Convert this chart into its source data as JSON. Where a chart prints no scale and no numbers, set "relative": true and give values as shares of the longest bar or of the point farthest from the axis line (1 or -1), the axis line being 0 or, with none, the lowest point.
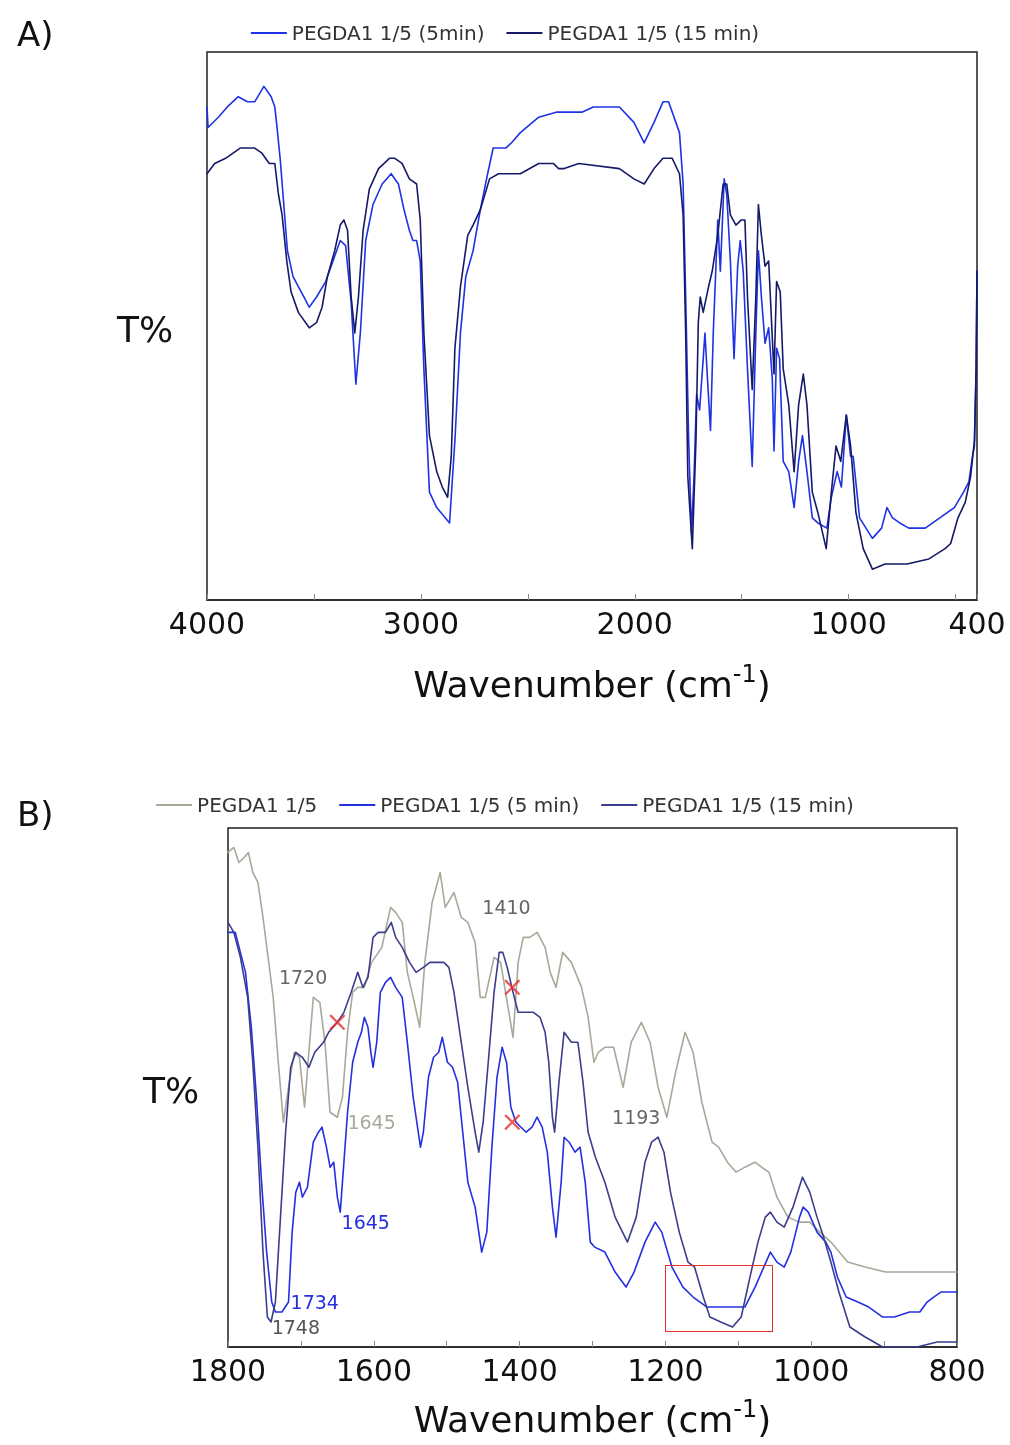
{
  "chart_data": [
    {
      "type": "line",
      "title": "A)",
      "xlabel": "Wavenumber (cm$^{-1}$)",
      "ylabel": "T%",
      "relative": true,
      "legend": "top",
      "grid": false,
      "xlim": [
        4000,
        400
      ],
      "xticks": [
        4000,
        {
          "value": 3500,
          "label": null
        },
        3000,
        {
          "value": 2500,
          "label": null
        },
        2000,
        {
          "value": 1500,
          "label": null
        },
        1000,
        {
          "value": 500,
          "label": null
        },
        400
      ],
      "series": [
        {
          "name": "PEGDA1 1/5 (5min)",
          "color": "#1e32e6",
          "x": [
            4000,
            3995,
            3947,
            3905,
            3854,
            3811,
            3777,
            3734,
            3700,
            3683,
            3675,
            3658,
            3641,
            3624,
            3598,
            3573,
            3547,
            3522,
            3488,
            3445,
            3411,
            3377,
            3352,
            3326,
            3304,
            3283,
            3258,
            3224,
            3181,
            3139,
            3105,
            3079,
            3054,
            3037,
            3020,
            3003,
            2986,
            2960,
            2926,
            2866,
            2841,
            2815,
            2790,
            2756,
            2722,
            2688,
            2662,
            2603,
            2577,
            2535,
            2449,
            2364,
            2245,
            2194,
            2072,
            2004,
            1956,
            1910,
            1868,
            1842,
            1808,
            1791,
            1774,
            1762,
            1748,
            1735,
            1723,
            1711,
            1697,
            1680,
            1672,
            1660,
            1646,
            1633,
            1612,
            1600,
            1582,
            1570,
            1553,
            1536,
            1519,
            1507,
            1493,
            1473,
            1451,
            1434,
            1422,
            1408,
            1391,
            1374,
            1357,
            1349,
            1337,
            1323,
            1306,
            1280,
            1255,
            1234,
            1216,
            1195,
            1170,
            1144,
            1102,
            1081,
            1054,
            1034,
            1011,
            991,
            979,
            949,
            889,
            846,
            821,
            795,
            761,
            719,
            642,
            574,
            506,
            463,
            438,
            421,
            412,
            404,
            400
          ],
          "values": [
            0.96,
            0.92,
            0.94,
            0.96,
            0.98,
            0.97,
            0.97,
            1.0,
            0.98,
            0.96,
            0.93,
            0.86,
            0.77,
            0.68,
            0.63,
            0.61,
            0.59,
            0.57,
            0.59,
            0.62,
            0.66,
            0.7,
            0.69,
            0.58,
            0.42,
            0.52,
            0.7,
            0.77,
            0.81,
            0.83,
            0.81,
            0.76,
            0.72,
            0.7,
            0.7,
            0.66,
            0.45,
            0.21,
            0.18,
            0.15,
            0.31,
            0.52,
            0.63,
            0.68,
            0.76,
            0.83,
            0.88,
            0.88,
            0.89,
            0.91,
            0.94,
            0.95,
            0.95,
            0.96,
            0.96,
            0.93,
            0.89,
            0.93,
            0.97,
            0.97,
            0.93,
            0.91,
            0.81,
            0.59,
            0.31,
            0.13,
            0.24,
            0.4,
            0.37,
            0.47,
            0.52,
            0.43,
            0.33,
            0.52,
            0.74,
            0.64,
            0.82,
            0.79,
            0.66,
            0.47,
            0.65,
            0.7,
            0.64,
            0.45,
            0.26,
            0.52,
            0.68,
            0.59,
            0.5,
            0.53,
            0.43,
            0.29,
            0.49,
            0.47,
            0.27,
            0.25,
            0.18,
            0.27,
            0.32,
            0.25,
            0.16,
            0.15,
            0.14,
            0.2,
            0.25,
            0.22,
            0.36,
            0.28,
            0.28,
            0.16,
            0.12,
            0.14,
            0.18,
            0.16,
            0.15,
            0.14,
            0.14,
            0.16,
            0.18,
            0.21,
            0.23,
            0.28,
            0.3,
            0.45,
            0.64
          ]
        },
        {
          "name": "PEGDA1 1/5 (15 min)",
          "color": "#161a66",
          "x": [
            4000,
            3964,
            3913,
            3845,
            3777,
            3743,
            3709,
            3683,
            3666,
            3649,
            3627,
            3607,
            3573,
            3522,
            3488,
            3462,
            3437,
            3403,
            3377,
            3360,
            3343,
            3326,
            3309,
            3292,
            3270,
            3241,
            3198,
            3147,
            3122,
            3088,
            3054,
            3020,
            3003,
            2986,
            2960,
            2926,
            2900,
            2875,
            2858,
            2841,
            2815,
            2781,
            2756,
            2722,
            2679,
            2637,
            2586,
            2535,
            2449,
            2381,
            2356,
            2330,
            2262,
            2072,
            2004,
            1956,
            1910,
            1868,
            1825,
            1791,
            1774,
            1762,
            1752,
            1731,
            1714,
            1703,
            1694,
            1680,
            1655,
            1638,
            1612,
            1587,
            1570,
            1553,
            1527,
            1502,
            1485,
            1473,
            1451,
            1434,
            1422,
            1408,
            1391,
            1374,
            1357,
            1349,
            1337,
            1320,
            1306,
            1280,
            1255,
            1234,
            1212,
            1195,
            1170,
            1144,
            1105,
            1081,
            1059,
            1037,
            1011,
            991,
            966,
            932,
            889,
            830,
            727,
            625,
            549,
            523,
            489,
            455,
            430,
            412,
            404,
            400
          ],
          "values": [
            0.83,
            0.85,
            0.86,
            0.88,
            0.88,
            0.87,
            0.85,
            0.85,
            0.79,
            0.75,
            0.66,
            0.6,
            0.56,
            0.53,
            0.54,
            0.57,
            0.63,
            0.68,
            0.73,
            0.74,
            0.72,
            0.59,
            0.52,
            0.59,
            0.72,
            0.8,
            0.84,
            0.86,
            0.86,
            0.85,
            0.82,
            0.81,
            0.74,
            0.52,
            0.32,
            0.25,
            0.22,
            0.2,
            0.28,
            0.49,
            0.61,
            0.71,
            0.73,
            0.76,
            0.82,
            0.83,
            0.83,
            0.83,
            0.85,
            0.85,
            0.84,
            0.84,
            0.85,
            0.84,
            0.82,
            0.81,
            0.84,
            0.86,
            0.86,
            0.83,
            0.75,
            0.52,
            0.24,
            0.1,
            0.31,
            0.54,
            0.59,
            0.56,
            0.61,
            0.64,
            0.71,
            0.81,
            0.81,
            0.75,
            0.73,
            0.74,
            0.74,
            0.59,
            0.41,
            0.59,
            0.77,
            0.71,
            0.65,
            0.66,
            0.51,
            0.44,
            0.62,
            0.6,
            0.45,
            0.38,
            0.25,
            0.38,
            0.44,
            0.38,
            0.21,
            0.17,
            0.1,
            0.21,
            0.3,
            0.27,
            0.36,
            0.3,
            0.17,
            0.1,
            0.06,
            0.07,
            0.07,
            0.08,
            0.1,
            0.11,
            0.16,
            0.19,
            0.24,
            0.31,
            0.45,
            0.64
          ]
        }
      ]
    },
    {
      "type": "line",
      "title": "B)",
      "xlabel": "Wavenumber (cm$^{-1}$)",
      "ylabel": "T%",
      "relative": true,
      "legend": "top",
      "grid": false,
      "xlim": [
        1800,
        800
      ],
      "xticks": [
        1800,
        {
          "value": 1700,
          "label": null
        },
        1600,
        {
          "value": 1500,
          "label": null
        },
        1400,
        {
          "value": 1300,
          "label": null
        },
        1200,
        {
          "value": 1100,
          "label": null
        },
        1000,
        {
          "value": 900,
          "label": null
        },
        800
      ],
      "series": [
        {
          "name": "PEGDA1 1/5",
          "color": "#a8a999",
          "x": [
            1800,
            1792,
            1785,
            1778,
            1772,
            1766,
            1759,
            1752,
            1745,
            1738,
            1731,
            1724,
            1717,
            1709,
            1702,
            1695,
            1688,
            1683,
            1674,
            1667,
            1660,
            1650,
            1643,
            1636,
            1629,
            1622,
            1613,
            1603,
            1589,
            1577,
            1570,
            1561,
            1554,
            1546,
            1537,
            1530,
            1520,
            1509,
            1502,
            1490,
            1480,
            1471,
            1461,
            1454,
            1447,
            1435,
            1426,
            1417,
            1409,
            1402,
            1395,
            1386,
            1376,
            1365,
            1358,
            1350,
            1341,
            1329,
            1315,
            1306,
            1298,
            1292,
            1283,
            1271,
            1258,
            1247,
            1233,
            1221,
            1210,
            1198,
            1186,
            1173,
            1162,
            1150,
            1136,
            1127,
            1115,
            1103,
            1091,
            1077,
            1068,
            1058,
            1047,
            1032,
            1016,
            1002,
            988,
            973,
            950,
            926,
            898,
            855,
            800
          ],
          "values": [
            0.99,
            1.0,
            0.97,
            0.98,
            0.99,
            0.95,
            0.93,
            0.86,
            0.78,
            0.7,
            0.57,
            0.45,
            0.52,
            0.59,
            0.58,
            0.48,
            0.61,
            0.7,
            0.69,
            0.61,
            0.47,
            0.46,
            0.5,
            0.63,
            0.71,
            0.72,
            0.72,
            0.77,
            0.8,
            0.88,
            0.87,
            0.85,
            0.75,
            0.7,
            0.64,
            0.77,
            0.89,
            0.95,
            0.88,
            0.91,
            0.86,
            0.85,
            0.81,
            0.7,
            0.7,
            0.78,
            0.77,
            0.69,
            0.62,
            0.77,
            0.82,
            0.82,
            0.83,
            0.8,
            0.75,
            0.72,
            0.79,
            0.77,
            0.72,
            0.66,
            0.57,
            0.59,
            0.6,
            0.6,
            0.52,
            0.61,
            0.65,
            0.61,
            0.52,
            0.46,
            0.55,
            0.63,
            0.59,
            0.49,
            0.41,
            0.4,
            0.37,
            0.35,
            0.36,
            0.37,
            0.36,
            0.35,
            0.3,
            0.26,
            0.25,
            0.25,
            0.23,
            0.21,
            0.17,
            0.16,
            0.15,
            0.15,
            0.15
          ]
        },
        {
          "name": "PEGDA1 1/5 (5 min)",
          "color": "#2430e0",
          "x": [
            1800,
            1790,
            1783,
            1776,
            1768,
            1761,
            1754,
            1747,
            1740,
            1735,
            1726,
            1717,
            1712,
            1707,
            1702,
            1698,
            1691,
            1683,
            1676,
            1671,
            1665,
            1660,
            1655,
            1650,
            1646,
            1641,
            1636,
            1629,
            1622,
            1617,
            1613,
            1608,
            1604,
            1601,
            1596,
            1591,
            1584,
            1577,
            1570,
            1561,
            1554,
            1546,
            1539,
            1536,
            1532,
            1525,
            1518,
            1511,
            1506,
            1499,
            1492,
            1485,
            1478,
            1471,
            1461,
            1452,
            1445,
            1438,
            1431,
            1424,
            1418,
            1412,
            1405,
            1398,
            1391,
            1383,
            1376,
            1369,
            1362,
            1355,
            1350,
            1343,
            1339,
            1332,
            1324,
            1317,
            1310,
            1303,
            1297,
            1283,
            1269,
            1254,
            1243,
            1228,
            1214,
            1205,
            1191,
            1176,
            1162,
            1143,
            1124,
            1106,
            1091,
            1077,
            1065,
            1056,
            1047,
            1037,
            1028,
            1016,
            1011,
            1004,
            992,
            980,
            973,
            964,
            952,
            936,
            921,
            902,
            886,
            865,
            851,
            841,
            832,
            822,
            813,
            800
          ],
          "values": [
            0.83,
            0.83,
            0.79,
            0.75,
            0.64,
            0.5,
            0.33,
            0.19,
            0.09,
            0.07,
            0.07,
            0.09,
            0.23,
            0.31,
            0.33,
            0.3,
            0.32,
            0.41,
            0.43,
            0.44,
            0.4,
            0.36,
            0.37,
            0.3,
            0.27,
            0.37,
            0.47,
            0.57,
            0.61,
            0.63,
            0.66,
            0.64,
            0.59,
            0.56,
            0.61,
            0.71,
            0.73,
            0.74,
            0.72,
            0.7,
            0.61,
            0.5,
            0.43,
            0.4,
            0.43,
            0.54,
            0.58,
            0.59,
            0.62,
            0.57,
            0.56,
            0.53,
            0.43,
            0.33,
            0.28,
            0.19,
            0.23,
            0.4,
            0.54,
            0.6,
            0.57,
            0.48,
            0.45,
            0.44,
            0.43,
            0.44,
            0.46,
            0.44,
            0.39,
            0.28,
            0.22,
            0.33,
            0.42,
            0.41,
            0.39,
            0.4,
            0.33,
            0.21,
            0.2,
            0.19,
            0.15,
            0.12,
            0.15,
            0.21,
            0.25,
            0.23,
            0.16,
            0.12,
            0.1,
            0.08,
            0.08,
            0.08,
            0.08,
            0.12,
            0.16,
            0.19,
            0.17,
            0.16,
            0.19,
            0.26,
            0.28,
            0.27,
            0.23,
            0.21,
            0.19,
            0.14,
            0.1,
            0.09,
            0.08,
            0.06,
            0.06,
            0.07,
            0.07,
            0.09,
            0.1,
            0.11,
            0.11,
            0.11
          ]
        },
        {
          "name": "PEGDA1 1/5 (15 min)",
          "color": "#3a3d8c",
          "x": [
            1800,
            1792,
            1783,
            1773,
            1766,
            1759,
            1752,
            1746,
            1741,
            1735,
            1728,
            1721,
            1714,
            1707,
            1698,
            1689,
            1681,
            1669,
            1662,
            1650,
            1641,
            1631,
            1622,
            1615,
            1608,
            1601,
            1594,
            1584,
            1576,
            1570,
            1561,
            1551,
            1542,
            1532,
            1523,
            1513,
            1504,
            1497,
            1490,
            1480,
            1471,
            1461,
            1456,
            1450,
            1443,
            1435,
            1428,
            1423,
            1417,
            1409,
            1402,
            1393,
            1381,
            1372,
            1365,
            1360,
            1355,
            1352,
            1346,
            1339,
            1329,
            1320,
            1313,
            1306,
            1296,
            1283,
            1269,
            1252,
            1240,
            1228,
            1219,
            1210,
            1202,
            1193,
            1181,
            1169,
            1160,
            1148,
            1139,
            1124,
            1108,
            1096,
            1084,
            1073,
            1063,
            1056,
            1047,
            1037,
            1025,
            1012,
            1002,
            992,
            983,
            973,
            962,
            947,
            926,
            902,
            884,
            855,
            827,
            800
          ],
          "values": [
            0.85,
            0.83,
            0.78,
            0.7,
            0.57,
            0.4,
            0.19,
            0.06,
            0.05,
            0.09,
            0.26,
            0.43,
            0.56,
            0.59,
            0.58,
            0.56,
            0.59,
            0.61,
            0.63,
            0.65,
            0.67,
            0.71,
            0.75,
            0.72,
            0.74,
            0.82,
            0.83,
            0.83,
            0.85,
            0.82,
            0.8,
            0.77,
            0.75,
            0.76,
            0.77,
            0.77,
            0.77,
            0.76,
            0.71,
            0.61,
            0.52,
            0.43,
            0.39,
            0.45,
            0.57,
            0.71,
            0.79,
            0.79,
            0.76,
            0.71,
            0.67,
            0.67,
            0.67,
            0.66,
            0.63,
            0.57,
            0.46,
            0.43,
            0.53,
            0.63,
            0.61,
            0.61,
            0.53,
            0.43,
            0.38,
            0.33,
            0.26,
            0.21,
            0.26,
            0.37,
            0.41,
            0.42,
            0.39,
            0.31,
            0.23,
            0.17,
            0.16,
            0.1,
            0.06,
            0.05,
            0.04,
            0.06,
            0.14,
            0.21,
            0.26,
            0.27,
            0.25,
            0.24,
            0.28,
            0.34,
            0.31,
            0.26,
            0.22,
            0.17,
            0.11,
            0.04,
            0.02,
            0.0,
            0.0,
            0.0,
            0.01,
            0.01
          ]
        },
        {
          "type": "scatter",
          "marker": "cross",
          "color": "#e8302a",
          "x": [
            1650,
            1410,
            1410
          ],
          "values": [
            0.65,
            0.72,
            0.45
          ]
        }
      ],
      "annotations": [
        "1720",
        "1410",
        "1645",
        "1193",
        "1645",
        "1734",
        "1748"
      ]
    }
  ]
}
